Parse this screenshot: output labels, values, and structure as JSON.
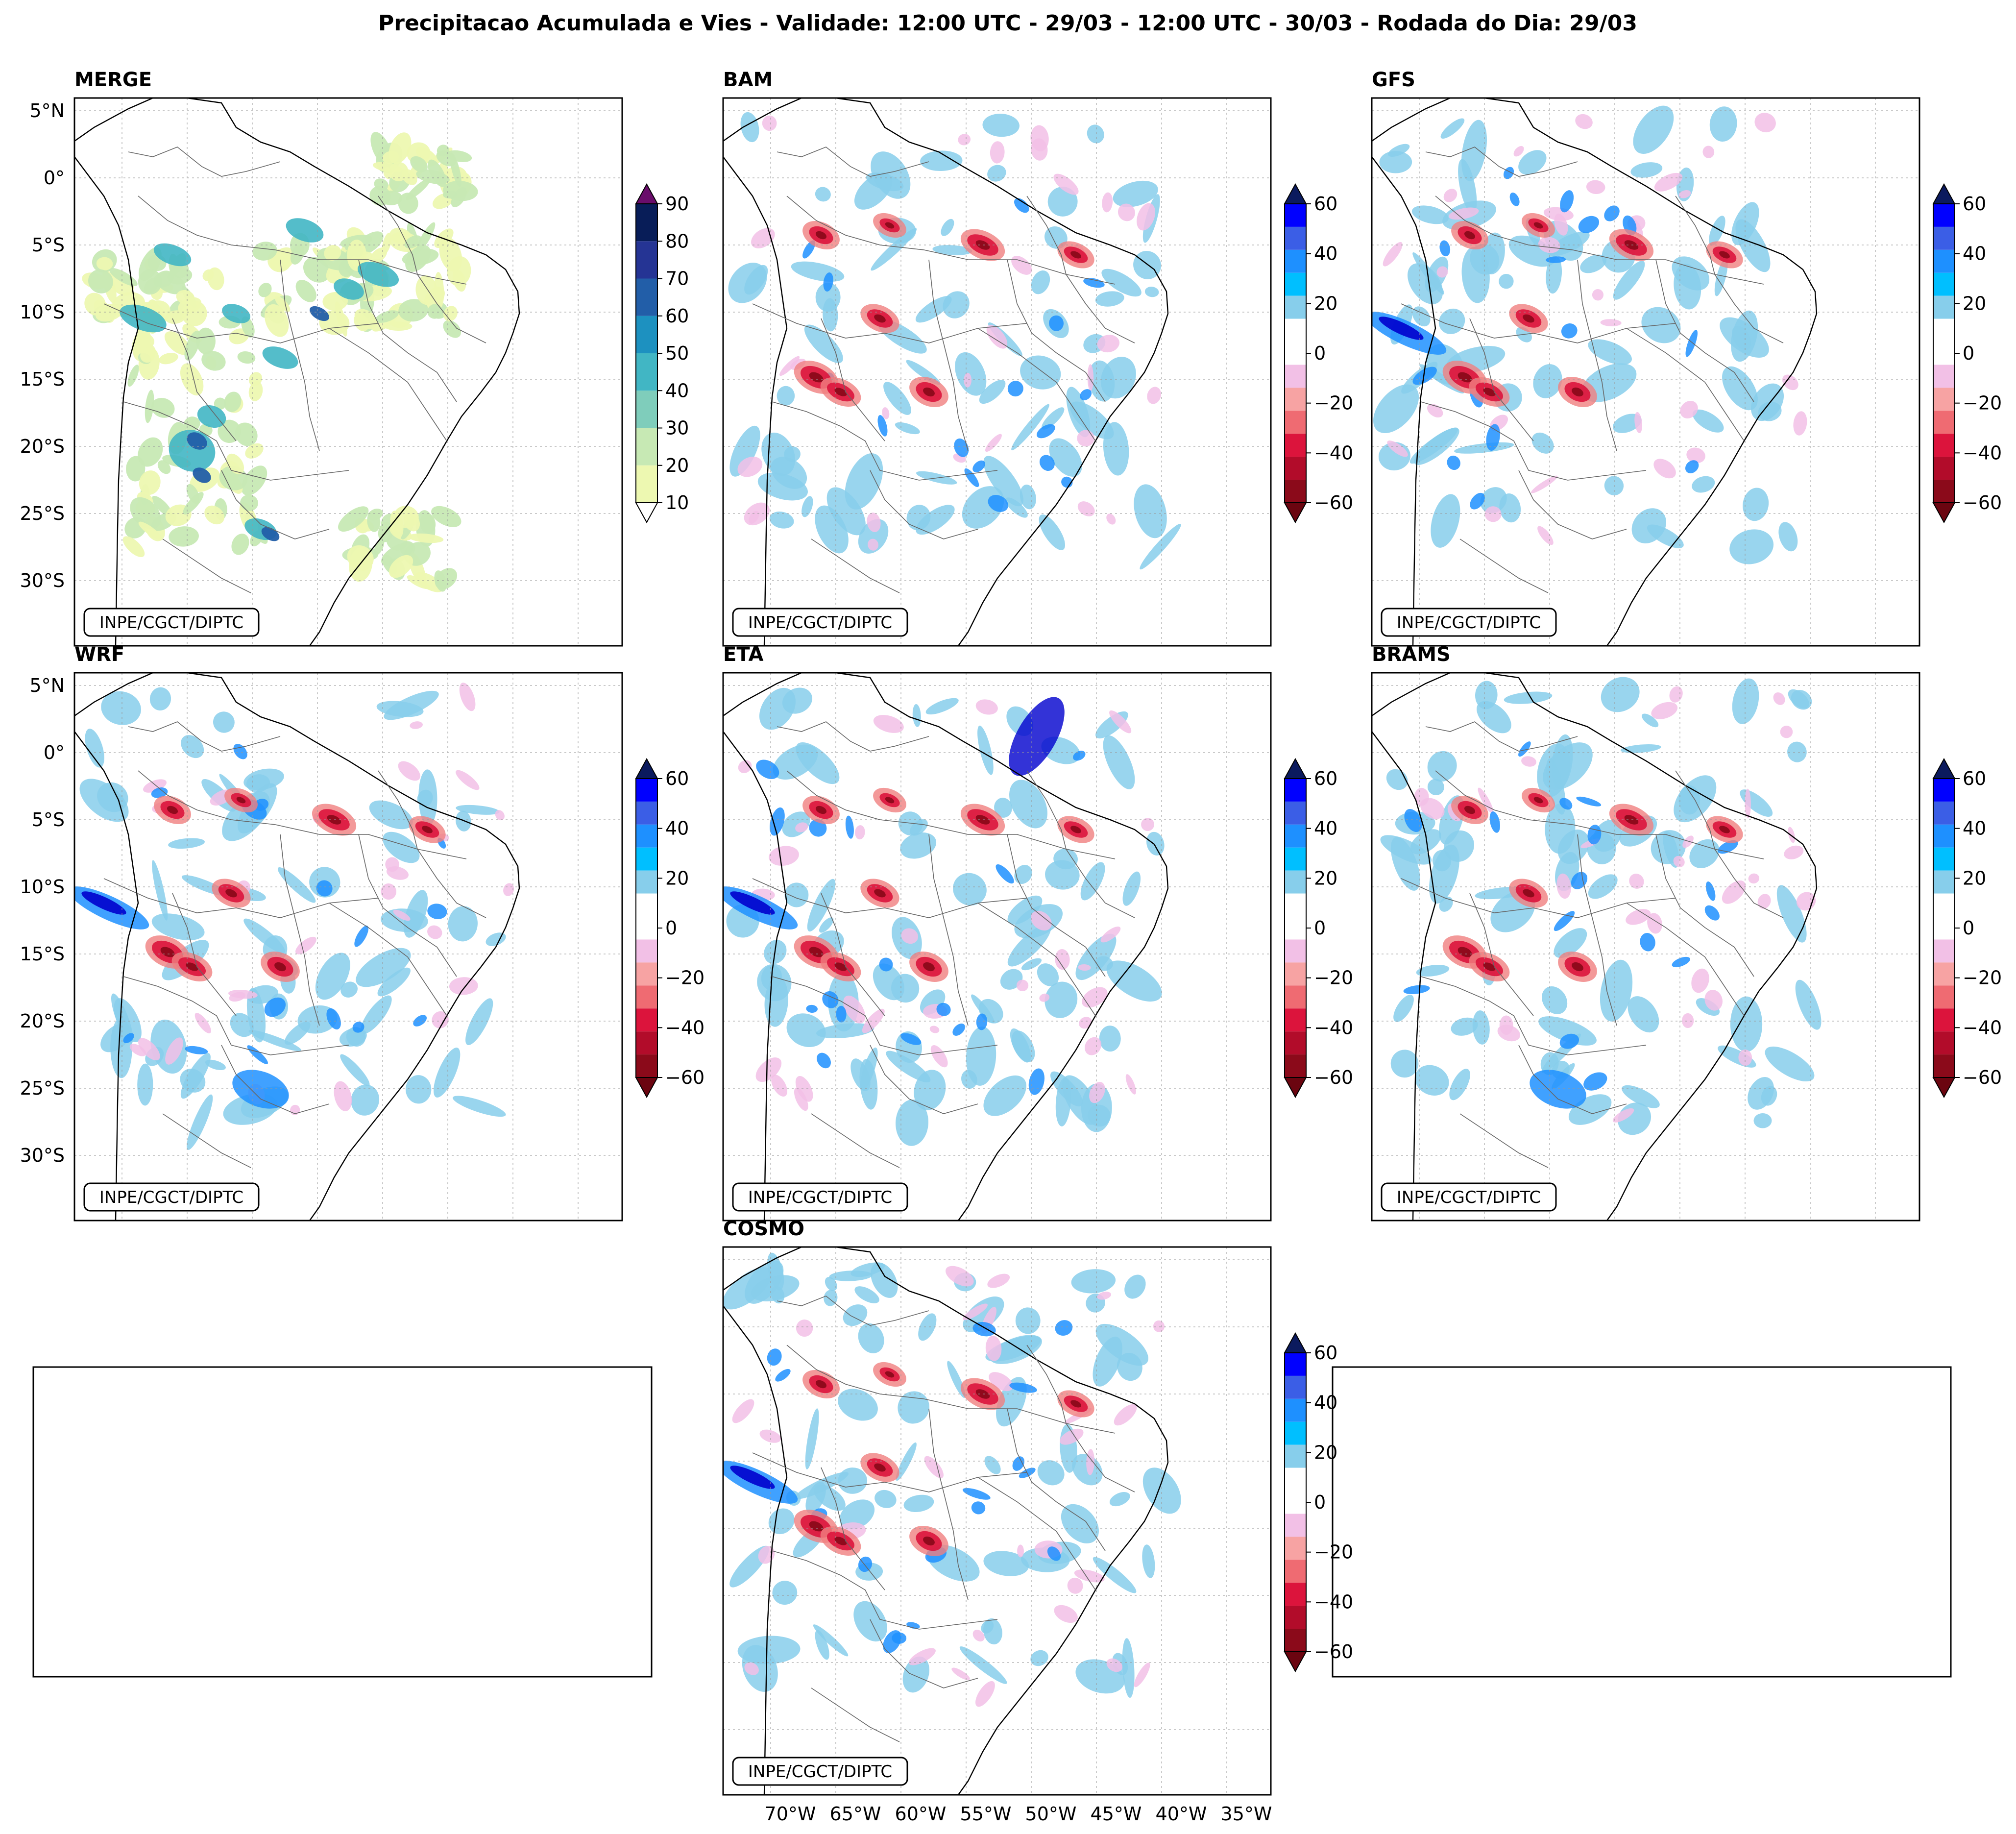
{
  "title": "Precipitacao Acumulada e Vies - Validade: 12:00 UTC - 29/03 - 12:00 UTC - 30/03 - Rodada do Dia: 29/03",
  "credit": "INPE/CGCT/DIPTC",
  "panels": [
    {
      "name": "MERGE",
      "type": "precip"
    },
    {
      "name": "BAM",
      "type": "bias"
    },
    {
      "name": "GFS",
      "type": "bias"
    },
    {
      "name": "WRF",
      "type": "bias"
    },
    {
      "name": "ETA",
      "type": "bias"
    },
    {
      "name": "BRAMS",
      "type": "bias"
    },
    {
      "name": "COSMO",
      "type": "bias"
    }
  ],
  "lat_ticks": [
    "5°N",
    "0°",
    "5°S",
    "10°S",
    "15°S",
    "20°S",
    "25°S",
    "30°S"
  ],
  "lon_ticks": [
    "70°W",
    "65°W",
    "60°W",
    "55°W",
    "50°W",
    "45°W",
    "40°W",
    "35°W"
  ],
  "precip_colorbar": {
    "ticks": [
      "10",
      "20",
      "30",
      "40",
      "50",
      "60",
      "70",
      "80",
      "90"
    ],
    "colors": [
      "#edf8b1",
      "#c7e9b4",
      "#7fcdbb",
      "#41b6c4",
      "#1d91c0",
      "#225ea8",
      "#253494",
      "#081d58"
    ],
    "under_color": "#ffffff",
    "over_color": "#6a0d6b"
  },
  "bias_colorbar": {
    "ticks": [
      "60",
      "40",
      "20",
      "0",
      "−20",
      "−40",
      "−60"
    ],
    "colors_top_to_bottom": [
      "#0000ff",
      "#3b5ee6",
      "#1e90ff",
      "#00bfff",
      "#87ceeb",
      "#ffffff",
      "#ffffff",
      "#f2c0e6",
      "#f7a3a3",
      "#ef6b72",
      "#dc143c",
      "#b20c2a",
      "#8b0a1a"
    ],
    "over_color": "#0b1a5e",
    "under_color": "#6b0510"
  },
  "colors": {
    "light_blue": "#87ceeb",
    "mid_blue": "#1e90ff",
    "deep_blue": "#0000cd",
    "navy": "#081d58",
    "pink": "#f2c0e6",
    "salmon": "#f08080",
    "red": "#dc143c",
    "dark_red": "#8b0a1a",
    "merge_light": "#edf8b1",
    "merge_green": "#c7e9b4",
    "merge_teal": "#41b6c4",
    "merge_blue": "#225ea8"
  }
}
